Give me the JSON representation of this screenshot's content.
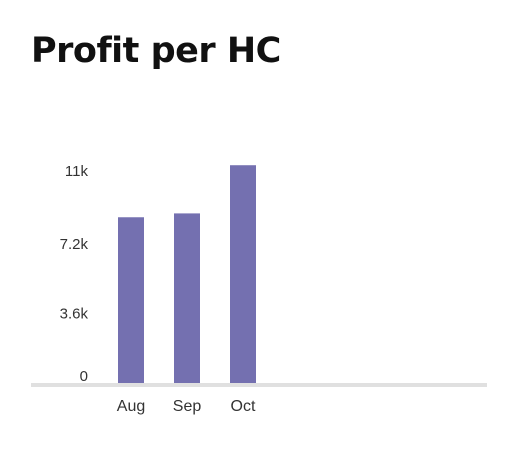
{
  "chart_data": {
    "type": "bar",
    "title": "Profit per HC",
    "categories": [
      "Aug",
      "Sep",
      "Oct"
    ],
    "values": [
      8600,
      8800,
      11300
    ],
    "y_ticks": [
      0,
      3600,
      7200,
      11000
    ],
    "y_tick_labels": [
      "0",
      "3.6k",
      "7.2k",
      "11k"
    ],
    "ylim": [
      0,
      11000
    ],
    "xlabel": "",
    "ylabel": "",
    "grid": false,
    "bar_color": "#7470b0",
    "axis_color": "#e0e0e0"
  }
}
